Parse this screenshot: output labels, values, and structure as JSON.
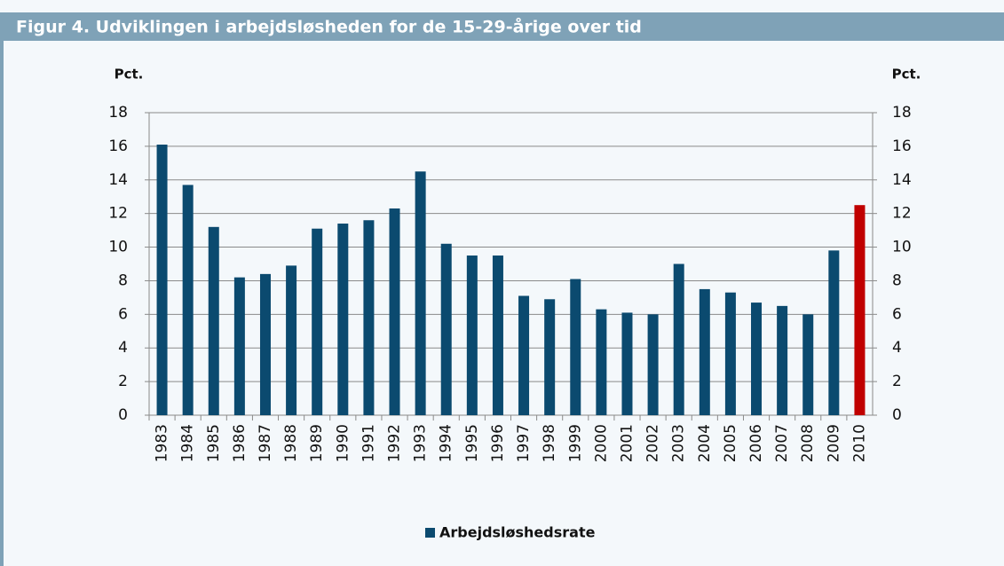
{
  "chart_data": {
    "type": "bar",
    "title": "Figur 4. Udviklingen i arbejdsløsheden for de 15-29-årige over tid",
    "ylabel": "Pct.",
    "y2label": "Pct.",
    "categories": [
      "1983",
      "1984",
      "1985",
      "1986",
      "1987",
      "1988",
      "1989",
      "1990",
      "1991",
      "1992",
      "1993",
      "1994",
      "1995",
      "1996",
      "1997",
      "1998",
      "1999",
      "2000",
      "2001",
      "2002",
      "2003",
      "2004",
      "2005",
      "2006",
      "2007",
      "2008",
      "2009",
      "2010"
    ],
    "series": [
      {
        "name": "Arbejdsløshedsrate",
        "color": "#0b4a6f",
        "values": [
          16.1,
          13.7,
          11.2,
          8.2,
          8.4,
          8.9,
          11.1,
          11.4,
          11.6,
          12.3,
          14.5,
          10.2,
          9.5,
          9.5,
          7.1,
          6.9,
          8.1,
          6.3,
          6.1,
          6.0,
          9.0,
          7.5,
          7.3,
          6.7,
          6.5,
          6.0,
          9.8,
          12.5
        ],
        "colors": [
          "#0b4a6f",
          "#0b4a6f",
          "#0b4a6f",
          "#0b4a6f",
          "#0b4a6f",
          "#0b4a6f",
          "#0b4a6f",
          "#0b4a6f",
          "#0b4a6f",
          "#0b4a6f",
          "#0b4a6f",
          "#0b4a6f",
          "#0b4a6f",
          "#0b4a6f",
          "#0b4a6f",
          "#0b4a6f",
          "#0b4a6f",
          "#0b4a6f",
          "#0b4a6f",
          "#0b4a6f",
          "#0b4a6f",
          "#0b4a6f",
          "#0b4a6f",
          "#0b4a6f",
          "#0b4a6f",
          "#0b4a6f",
          "#0b4a6f",
          "#c00000"
        ]
      }
    ],
    "ylim": [
      0,
      18
    ],
    "yticks": [
      0,
      2,
      4,
      6,
      8,
      10,
      12,
      14,
      16,
      18
    ],
    "y2lim": [
      0,
      18
    ],
    "y2ticks": [
      0,
      2,
      4,
      6,
      8,
      10,
      12,
      14,
      16,
      18
    ],
    "grid": true,
    "legend": "bottom"
  }
}
